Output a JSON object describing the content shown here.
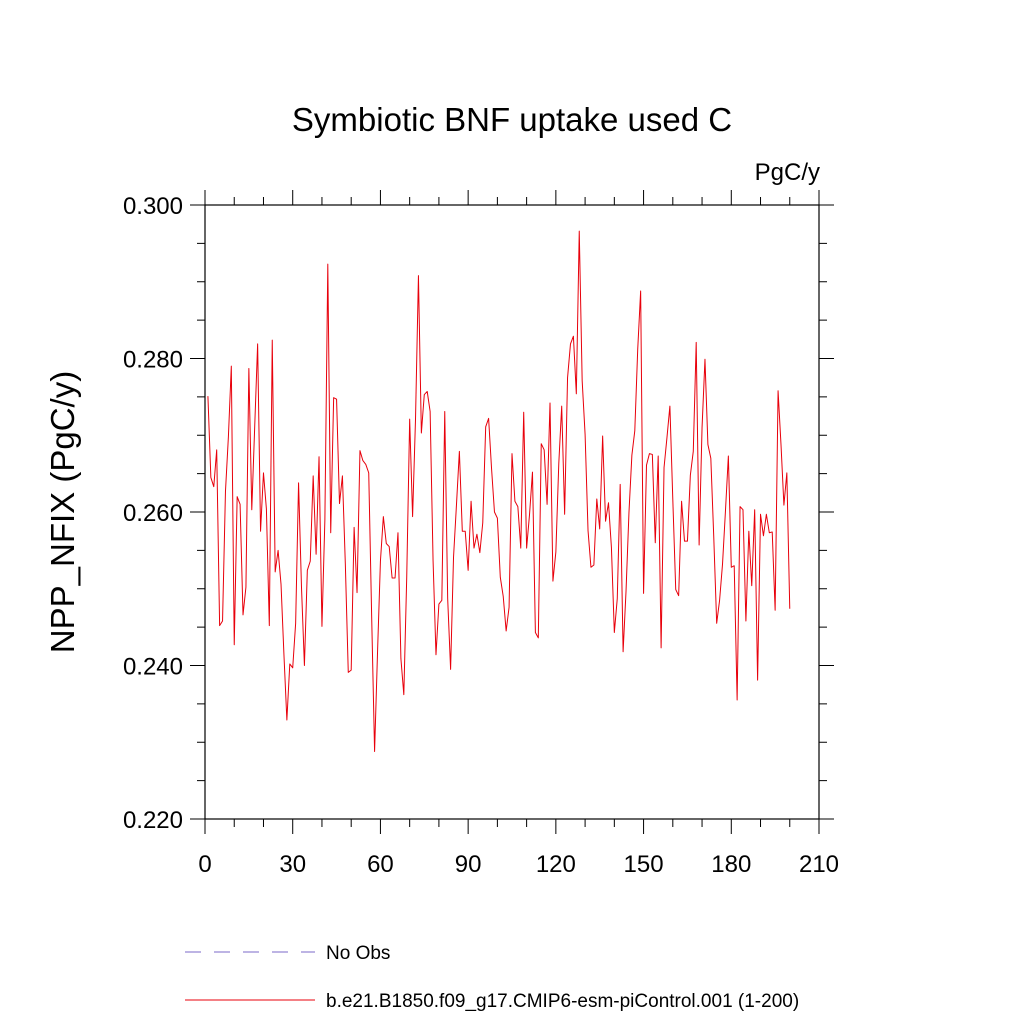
{
  "chart_data": {
    "type": "line",
    "title": "Symbiotic BNF uptake used C",
    "units_label": "PgC/y",
    "ylabel": "NPP_NFIX  (PgC/y)",
    "xlabel": "",
    "xlim": [
      0,
      210
    ],
    "ylim": [
      0.22,
      0.3
    ],
    "x_ticks": [
      "0",
      "30",
      "60",
      "90",
      "120",
      "150",
      "180",
      "210"
    ],
    "y_ticks": [
      "0.220",
      "0.240",
      "0.260",
      "0.280",
      "0.300"
    ],
    "grid": false,
    "legend_position": "bottom",
    "series": [
      {
        "name": "No Obs",
        "style": "dashed",
        "color": "#7b68c8",
        "x": [],
        "values": []
      },
      {
        "name": "b.e21.B1850.f09_g17.CMIP6-esm-piControl.001 (1-200)",
        "style": "solid",
        "color": "#e8000b",
        "x": [
          1,
          2,
          3,
          4,
          5,
          6,
          7,
          8,
          9,
          10,
          11,
          12,
          13,
          14,
          15,
          16,
          17,
          18,
          19,
          20,
          21,
          22,
          23,
          24,
          25,
          26,
          27,
          28,
          29,
          30,
          31,
          32,
          33,
          34,
          35,
          36,
          37,
          38,
          39,
          40,
          41,
          42,
          43,
          44,
          45,
          46,
          47,
          48,
          49,
          50,
          51,
          52,
          53,
          54,
          55,
          56,
          57,
          58,
          59,
          60,
          61,
          62,
          63,
          64,
          65,
          66,
          67,
          68,
          69,
          70,
          71,
          72,
          73,
          74,
          75,
          76,
          77,
          78,
          79,
          80,
          81,
          82,
          83,
          84,
          85,
          86,
          87,
          88,
          89,
          90,
          91,
          92,
          93,
          94,
          95,
          96,
          97,
          98,
          99,
          100,
          101,
          102,
          103,
          104,
          105,
          106,
          107,
          108,
          109,
          110,
          111,
          112,
          113,
          114,
          115,
          116,
          117,
          118,
          119,
          120,
          121,
          122,
          123,
          124,
          125,
          126,
          127,
          128,
          129,
          130,
          131,
          132,
          133,
          134,
          135,
          136,
          137,
          138,
          139,
          140,
          141,
          142,
          143,
          144,
          145,
          146,
          147,
          148,
          149,
          150,
          151,
          152,
          153,
          154,
          155,
          156,
          157,
          158,
          159,
          160,
          161,
          162,
          163,
          164,
          165,
          166,
          167,
          168,
          169,
          170,
          171,
          172,
          173,
          174,
          175,
          176,
          177,
          178,
          179,
          180,
          181,
          182,
          183,
          184,
          185,
          186,
          187,
          188,
          189,
          190,
          191,
          192,
          193,
          194,
          195,
          196,
          197,
          198,
          199,
          200
        ],
        "values": [
          0.2751,
          0.2645,
          0.2633,
          0.2681,
          0.2452,
          0.2458,
          0.2627,
          0.2698,
          0.279,
          0.2427,
          0.262,
          0.261,
          0.2466,
          0.2502,
          0.2787,
          0.2603,
          0.2711,
          0.2819,
          0.2575,
          0.2651,
          0.2604,
          0.2452,
          0.2824,
          0.2522,
          0.255,
          0.2506,
          0.2414,
          0.2329,
          0.2402,
          0.2397,
          0.2455,
          0.2638,
          0.2502,
          0.24,
          0.2524,
          0.2536,
          0.2647,
          0.2545,
          0.2672,
          0.2451,
          0.259,
          0.2923,
          0.2573,
          0.2749,
          0.2747,
          0.2611,
          0.2647,
          0.2532,
          0.2391,
          0.2394,
          0.258,
          0.2495,
          0.268,
          0.2667,
          0.2662,
          0.2651,
          0.2464,
          0.2288,
          0.2416,
          0.2536,
          0.2594,
          0.2559,
          0.2555,
          0.2514,
          0.2514,
          0.2573,
          0.2409,
          0.2362,
          0.2516,
          0.2721,
          0.2594,
          0.2721,
          0.2908,
          0.2703,
          0.2753,
          0.2757,
          0.2731,
          0.2537,
          0.2414,
          0.248,
          0.2485,
          0.2731,
          0.2487,
          0.2395,
          0.2541,
          0.2609,
          0.2679,
          0.2575,
          0.2575,
          0.2524,
          0.2614,
          0.2553,
          0.2571,
          0.2547,
          0.2586,
          0.2711,
          0.2722,
          0.2657,
          0.26,
          0.2592,
          0.2515,
          0.249,
          0.2445,
          0.2476,
          0.2676,
          0.2614,
          0.2607,
          0.2553,
          0.273,
          0.2553,
          0.2597,
          0.2652,
          0.2443,
          0.2436,
          0.2689,
          0.2681,
          0.261,
          0.2742,
          0.251,
          0.2548,
          0.2663,
          0.2738,
          0.2597,
          0.2775,
          0.2819,
          0.2829,
          0.2754,
          0.2966,
          0.2771,
          0.2701,
          0.2576,
          0.2528,
          0.2531,
          0.2617,
          0.2578,
          0.2699,
          0.2588,
          0.2612,
          0.2554,
          0.2443,
          0.2487,
          0.2636,
          0.2418,
          0.2497,
          0.2599,
          0.2674,
          0.2706,
          0.2812,
          0.2888,
          0.2494,
          0.2661,
          0.2676,
          0.2675,
          0.256,
          0.2673,
          0.2423,
          0.2658,
          0.2697,
          0.2738,
          0.2616,
          0.2499,
          0.2491,
          0.2614,
          0.2562,
          0.2562,
          0.2648,
          0.2679,
          0.2821,
          0.2557,
          0.271,
          0.2799,
          0.2688,
          0.267,
          0.2568,
          0.2455,
          0.2485,
          0.2532,
          0.2601,
          0.2673,
          0.2528,
          0.253,
          0.2355,
          0.2607,
          0.2603,
          0.2458,
          0.2575,
          0.2504,
          0.2603,
          0.2381,
          0.2597,
          0.2569,
          0.2597,
          0.2573,
          0.2574,
          0.2472,
          0.2758,
          0.2688,
          0.2609,
          0.2651,
          0.2474
        ]
      }
    ]
  }
}
